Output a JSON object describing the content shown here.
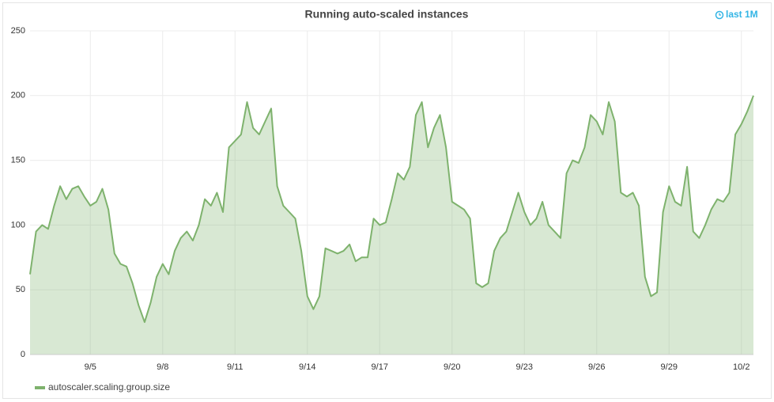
{
  "chart_data": {
    "type": "line",
    "title": "Running auto-scaled instances",
    "time_range": "last 1M",
    "categories": [
      null,
      null,
      null,
      null,
      null,
      null,
      null,
      null,
      null,
      null,
      "9/5",
      null,
      null,
      null,
      null,
      null,
      null,
      null,
      null,
      null,
      null,
      null,
      "9/8",
      null,
      null,
      null,
      null,
      null,
      null,
      null,
      null,
      null,
      null,
      null,
      "9/11",
      null,
      null,
      null,
      null,
      null,
      null,
      null,
      null,
      null,
      null,
      null,
      "9/14",
      null,
      null,
      null,
      null,
      null,
      null,
      null,
      null,
      null,
      null,
      null,
      "9/17",
      null,
      null,
      null,
      null,
      null,
      null,
      null,
      null,
      null,
      null,
      null,
      "9/20",
      null,
      null,
      null,
      null,
      null,
      null,
      null,
      null,
      null,
      null,
      null,
      "9/23",
      null,
      null,
      null,
      null,
      null,
      null,
      null,
      null,
      null,
      null,
      null,
      "9/26",
      null,
      null,
      null,
      null,
      null,
      null,
      null,
      null,
      null,
      null,
      null,
      "9/29",
      null,
      null,
      null,
      null,
      null,
      null,
      null,
      null,
      null,
      null,
      null,
      "10/2",
      null,
      null
    ],
    "series": [
      {
        "name": "autoscaler.scaling.group.size",
        "color": "#7eb26d",
        "values": [
          62,
          95,
          100,
          97,
          115,
          130,
          120,
          128,
          130,
          122,
          115,
          118,
          128,
          112,
          78,
          70,
          68,
          55,
          38,
          25,
          40,
          60,
          70,
          62,
          80,
          90,
          95,
          88,
          100,
          120,
          115,
          125,
          110,
          160,
          165,
          170,
          195,
          175,
          170,
          180,
          190,
          130,
          115,
          110,
          105,
          80,
          45,
          35,
          45,
          82,
          80,
          78,
          80,
          85,
          72,
          75,
          75,
          105,
          100,
          102,
          120,
          140,
          135,
          145,
          185,
          195,
          160,
          175,
          185,
          160,
          118,
          115,
          112,
          105,
          55,
          52,
          55,
          80,
          90,
          95,
          110,
          125,
          110,
          100,
          105,
          118,
          100,
          95,
          90,
          140,
          150,
          148,
          160,
          185,
          180,
          170,
          195,
          180,
          125,
          122,
          125,
          115,
          60,
          45,
          48,
          110,
          130,
          118,
          115,
          145,
          95,
          90,
          100,
          112,
          120,
          118,
          125,
          170,
          178,
          188,
          200
        ]
      }
    ],
    "ylim": [
      0,
      250
    ],
    "yticks": [
      0,
      50,
      100,
      150,
      200,
      250
    ],
    "grid": true,
    "fill": true,
    "legend": "bottom-left"
  }
}
